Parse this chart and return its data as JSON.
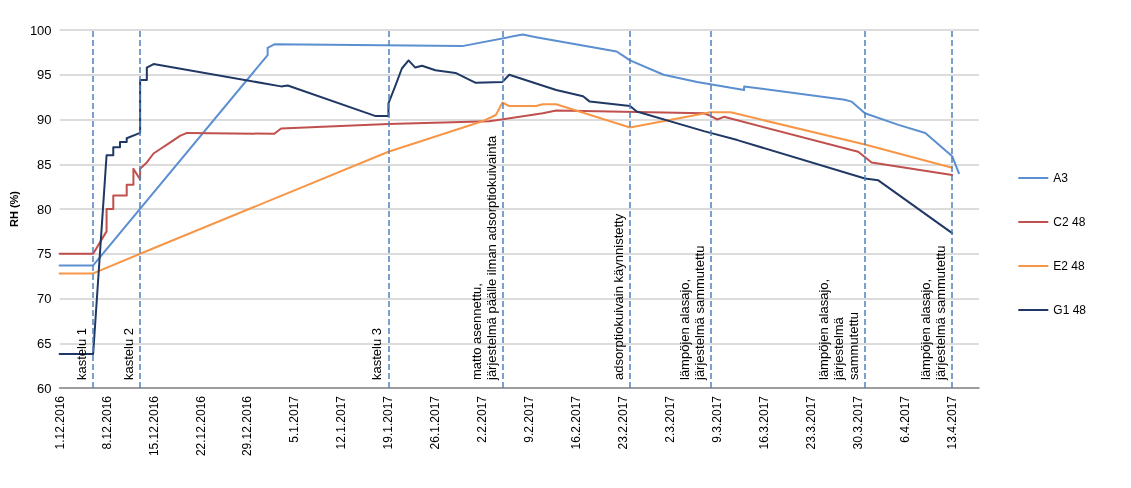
{
  "chart_data": {
    "type": "line",
    "ylabel": "RH (%)",
    "ylim": [
      60,
      100
    ],
    "yticks": [
      60,
      65,
      70,
      75,
      80,
      85,
      90,
      95,
      100
    ],
    "xlim": [
      "2016-12-01",
      "2017-04-17"
    ],
    "xticks": [
      {
        "value": "2016-12-01",
        "label": "1.12.2016"
      },
      {
        "value": "2016-12-08",
        "label": "8.12.2016"
      },
      {
        "value": "2016-12-15",
        "label": "15.12.2016"
      },
      {
        "value": "2016-12-22",
        "label": "22.12.2016"
      },
      {
        "value": "2016-12-29",
        "label": "29.12.2016"
      },
      {
        "value": "2017-01-05",
        "label": "5.1.2017"
      },
      {
        "value": "2017-01-12",
        "label": "12.1.2017"
      },
      {
        "value": "2017-01-19",
        "label": "19.1.2017"
      },
      {
        "value": "2017-01-26",
        "label": "26.1.2017"
      },
      {
        "value": "2017-02-02",
        "label": "2.2.2017"
      },
      {
        "value": "2017-02-09",
        "label": "9.2.2017"
      },
      {
        "value": "2017-02-16",
        "label": "16.2.2017"
      },
      {
        "value": "2017-02-23",
        "label": "23.2.2017"
      },
      {
        "value": "2017-03-02",
        "label": "2.3.2017"
      },
      {
        "value": "2017-03-09",
        "label": "9.3.2017"
      },
      {
        "value": "2017-03-16",
        "label": "16.3.2017"
      },
      {
        "value": "2017-03-23",
        "label": "23.3.2017"
      },
      {
        "value": "2017-03-30",
        "label": "30.3.2017"
      },
      {
        "value": "2017-04-06",
        "label": "6.4.2017"
      },
      {
        "value": "2017-04-13",
        "label": "13.4.2017"
      }
    ],
    "grid": "y",
    "legend": "right",
    "marker": "none",
    "line_style": "solid",
    "series": [
      {
        "name": "A3",
        "color": "#5b8fd0",
        "x": [
          "2016-12-01",
          "2016-12-06",
          "2017-01-01",
          "2017-01-01",
          "2017-01-02",
          "2017-01-30",
          "2017-02-08",
          "2017-02-10",
          "2017-02-22",
          "2017-02-23",
          "2017-02-24",
          "2017-03-01",
          "2017-03-06",
          "2017-03-13",
          "2017-03-13",
          "2017-03-28",
          "2017-03-29",
          "2017-03-31",
          "2017-04-05",
          "2017-04-09",
          "2017-04-13",
          "2017-04-14"
        ],
        "values": [
          73.7,
          73.7,
          97.2,
          98.0,
          98.4,
          98.2,
          99.5,
          99.2,
          97.6,
          97.1,
          96.6,
          95.0,
          94.2,
          93.3,
          93.7,
          92.2,
          92.0,
          90.7,
          89.4,
          88.5,
          85.9,
          84.0
        ]
      },
      {
        "name": "C2 48",
        "color": "#c0504d",
        "x": [
          "2016-12-01",
          "2016-12-06",
          "2016-12-08",
          "2016-12-08",
          "2016-12-09",
          "2016-12-09",
          "2016-12-11",
          "2016-12-11",
          "2016-12-12",
          "2016-12-12",
          "2016-12-13",
          "2016-12-13",
          "2016-12-14",
          "2016-12-15",
          "2016-12-16",
          "2016-12-17",
          "2016-12-18",
          "2016-12-19",
          "2016-12-20",
          "2017-01-02",
          "2017-01-03",
          "2017-01-19",
          "2017-02-03",
          "2017-02-11",
          "2017-02-13",
          "2017-03-07",
          "2017-03-08",
          "2017-03-09",
          "2017-03-10",
          "2017-03-30",
          "2017-04-01",
          "2017-04-13"
        ],
        "values": [
          75.0,
          75.0,
          77.5,
          80.0,
          80.0,
          81.5,
          81.5,
          82.7,
          82.7,
          84.5,
          83.3,
          84.5,
          85.2,
          86.2,
          86.7,
          87.2,
          87.7,
          88.2,
          88.5,
          88.4,
          89.0,
          89.5,
          89.8,
          90.7,
          91.0,
          90.7,
          90.4,
          90.0,
          90.3,
          86.4,
          85.2,
          83.8
        ]
      },
      {
        "name": "E2 48",
        "color": "#f79646",
        "x": [
          "2016-12-01",
          "2016-12-06",
          "2016-12-13",
          "2017-01-19",
          "2017-02-02",
          "2017-02-04",
          "2017-02-05",
          "2017-02-06",
          "2017-02-10",
          "2017-02-11",
          "2017-02-13",
          "2017-02-24",
          "2017-03-08",
          "2017-03-11",
          "2017-03-31",
          "2017-04-13"
        ],
        "values": [
          72.8,
          72.8,
          75.0,
          86.4,
          89.8,
          90.5,
          91.9,
          91.5,
          91.5,
          91.7,
          91.7,
          89.1,
          90.8,
          90.8,
          87.2,
          84.6
        ]
      },
      {
        "name": "G1 48",
        "color": "#1f3864",
        "x": [
          "2016-12-01",
          "2016-12-06",
          "2016-12-08",
          "2016-12-09",
          "2016-12-09",
          "2016-12-10",
          "2016-12-10",
          "2016-12-11",
          "2016-12-11",
          "2016-12-13",
          "2016-12-13",
          "2016-12-14",
          "2016-12-14",
          "2016-12-15",
          "2017-01-03",
          "2017-01-04",
          "2017-01-17",
          "2017-01-19",
          "2017-01-19",
          "2017-01-20",
          "2017-01-21",
          "2017-01-22",
          "2017-01-23",
          "2017-01-24",
          "2017-01-26",
          "2017-01-29",
          "2017-02-01",
          "2017-02-05",
          "2017-02-06",
          "2017-02-13",
          "2017-02-17",
          "2017-02-18",
          "2017-02-24",
          "2017-02-25",
          "2017-03-07",
          "2017-03-12",
          "2017-03-31",
          "2017-04-02",
          "2017-04-13"
        ],
        "values": [
          63.8,
          63.8,
          86.0,
          86.0,
          86.9,
          86.9,
          87.5,
          87.5,
          87.9,
          88.5,
          94.4,
          94.4,
          95.8,
          96.2,
          93.7,
          93.8,
          90.4,
          90.4,
          91.8,
          93.7,
          95.7,
          96.6,
          95.8,
          96.0,
          95.5,
          95.2,
          94.1,
          94.2,
          95.0,
          93.3,
          92.6,
          92.0,
          91.5,
          90.9,
          88.7,
          87.7,
          83.4,
          83.2,
          77.3
        ]
      }
    ],
    "ref_lines": [
      {
        "axis": "x",
        "value": "2016-12-06",
        "label": "kastelu 1",
        "color": "#4f81bd",
        "line_style": "dashed"
      },
      {
        "axis": "x",
        "value": "2016-12-13",
        "label": "kastelu 2",
        "color": "#4f81bd",
        "line_style": "dashed"
      },
      {
        "axis": "x",
        "value": "2017-01-19",
        "label": "kastelu 3",
        "color": "#4f81bd",
        "line_style": "dashed"
      },
      {
        "axis": "x",
        "value": "2017-02-05",
        "label": "matto asennettu,\njärjestelmä päälle ilman adsorptiokuivainta",
        "color": "#4f81bd",
        "line_style": "dashed"
      },
      {
        "axis": "x",
        "value": "2017-02-24",
        "label": "adsorptiokuivain käynnistetty",
        "color": "#4f81bd",
        "line_style": "dashed"
      },
      {
        "axis": "x",
        "value": "2017-03-08",
        "label": "lämpöjen alasajo,\njärjestelmä sammutettu",
        "color": "#4f81bd",
        "line_style": "dashed"
      },
      {
        "axis": "x",
        "value": "2017-03-31",
        "label": "lämpöjen alasajo,\njärjestelmä\nsammutettu",
        "color": "#4f81bd",
        "line_style": "dashed"
      },
      {
        "axis": "x",
        "value": "2017-04-13",
        "label": "lämpöjen alasajo,\njärjestelmä sammutettu",
        "color": "#4f81bd",
        "line_style": "dashed"
      }
    ]
  }
}
